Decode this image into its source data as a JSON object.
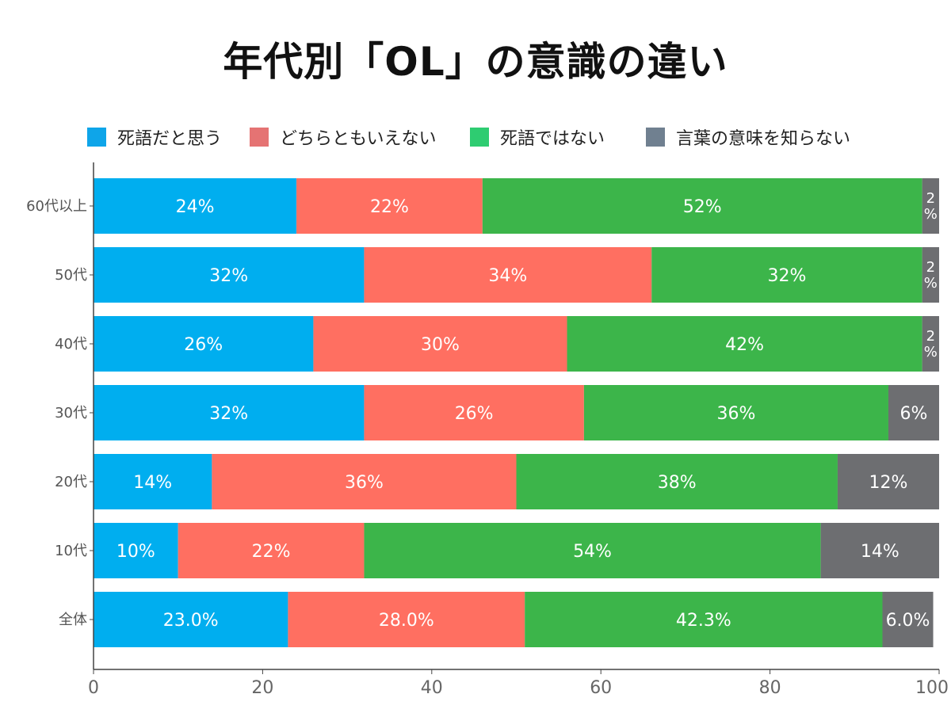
{
  "chart_data": {
    "type": "bar",
    "orientation": "horizontal",
    "stacked": true,
    "title": "年代別「OL」の意識の違い",
    "xlabel": "",
    "ylabel": "",
    "xlim": [
      0,
      100
    ],
    "xticks": [
      0,
      20,
      40,
      60,
      80,
      100
    ],
    "grid": false,
    "legend_position": "top",
    "categories": [
      "60代以上",
      "50代",
      "40代",
      "30代",
      "20代",
      "10代",
      "全体"
    ],
    "series": [
      {
        "name": "死語だと思う",
        "legend_color": "#0ea5e9",
        "color": "#00aeef",
        "values": [
          24,
          32,
          26,
          32,
          14,
          10,
          23.0
        ],
        "labels": [
          "24%",
          "32%",
          "26%",
          "32%",
          "14%",
          "10%",
          "23.0%"
        ]
      },
      {
        "name": "どちらともいえない",
        "legend_color": "#e57373",
        "color": "#ff6f61",
        "values": [
          22,
          34,
          30,
          26,
          36,
          22,
          28.0
        ],
        "labels": [
          "22%",
          "34%",
          "30%",
          "26%",
          "36%",
          "22%",
          "28.0%"
        ]
      },
      {
        "name": "死語ではない",
        "legend_color": "#2ecc71",
        "color": "#3cb54a",
        "values": [
          52,
          32,
          42,
          36,
          38,
          54,
          42.3
        ],
        "labels": [
          "52%",
          "32%",
          "42%",
          "36%",
          "38%",
          "54%",
          "42.3%"
        ]
      },
      {
        "name": "言葉の意味を知らない",
        "legend_color": "#708090",
        "color": "#6d6e71",
        "values": [
          2,
          2,
          2,
          6,
          12,
          14,
          6.0
        ],
        "labels": [
          "2%",
          "2%",
          "2%",
          "6%",
          "12%",
          "14%",
          "6.0%"
        ]
      }
    ]
  }
}
